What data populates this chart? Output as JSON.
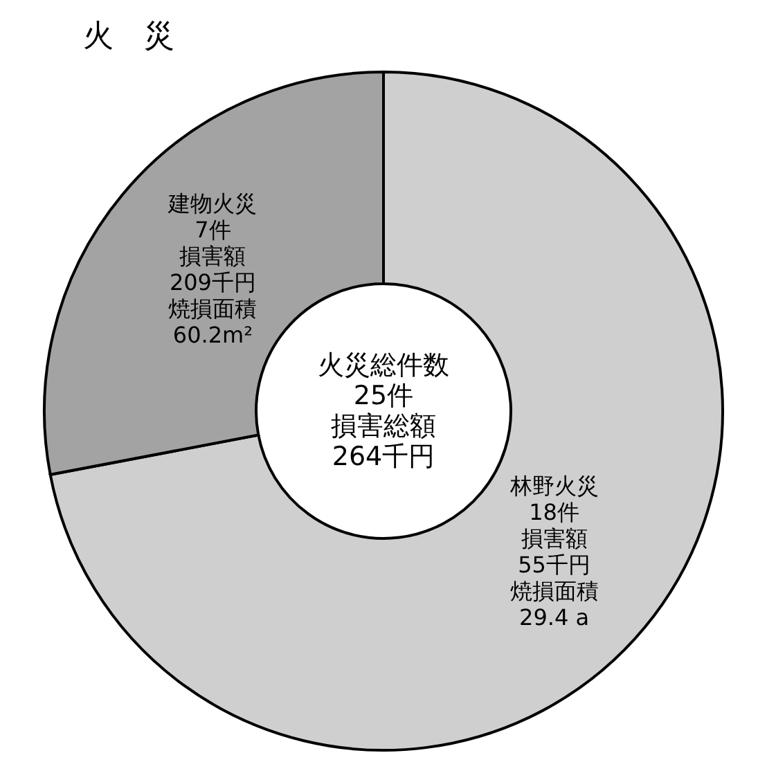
{
  "chart_data": {
    "type": "donut",
    "title": "火　災",
    "categories": [
      "林野火災",
      "建物火災"
    ],
    "values": [
      18,
      7
    ],
    "colors": [
      "#cfcfcf",
      "#a3a3a3"
    ],
    "value_labels": [
      "18件",
      "7件"
    ],
    "annotations": [
      "損害額",
      "55千円",
      "焼損面積",
      "29.4 a",
      "損害額",
      "209千円",
      "焼損面積",
      "60.2m²",
      "火災総件数",
      "25件",
      "損害総額",
      "264千円"
    ]
  }
}
